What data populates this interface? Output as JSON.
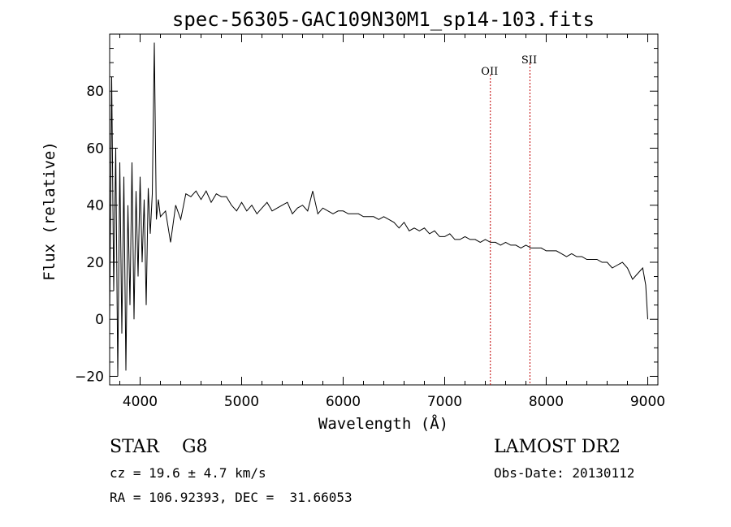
{
  "chart_data": {
    "type": "line",
    "title": "spec-56305-GAC109N30M1_sp14-103.fits",
    "xlabel": "Wavelength (Å)",
    "ylabel": "Flux (relative)",
    "xlim": [
      3700,
      9100
    ],
    "ylim": [
      -23,
      100
    ],
    "x_ticks": [
      4000,
      5000,
      6000,
      7000,
      8000,
      9000
    ],
    "y_ticks": [
      -20,
      0,
      20,
      40,
      60,
      80
    ],
    "grid": false,
    "series": [
      {
        "x": [
          3700,
          3720,
          3740,
          3760,
          3780,
          3800,
          3820,
          3840,
          3860,
          3880,
          3900,
          3920,
          3940,
          3960,
          3980,
          4000,
          4020,
          4040,
          4060,
          4080,
          4100,
          4120,
          4140,
          4160,
          4180,
          4200,
          4250,
          4300,
          4350,
          4400,
          4450,
          4500,
          4550,
          4600,
          4650,
          4700,
          4750,
          4800,
          4850,
          4900,
          4950,
          5000,
          5050,
          5100,
          5150,
          5200,
          5250,
          5300,
          5350,
          5400,
          5450,
          5500,
          5550,
          5600,
          5650,
          5700,
          5750,
          5800,
          5850,
          5900,
          5950,
          6000,
          6050,
          6100,
          6150,
          6200,
          6250,
          6300,
          6350,
          6400,
          6450,
          6500,
          6550,
          6600,
          6650,
          6700,
          6750,
          6800,
          6850,
          6900,
          6950,
          7000,
          7050,
          7100,
          7150,
          7200,
          7250,
          7300,
          7350,
          7400,
          7450,
          7500,
          7550,
          7600,
          7650,
          7700,
          7750,
          7800,
          7850,
          7900,
          7950,
          8000,
          8050,
          8100,
          8150,
          8200,
          8250,
          8300,
          8350,
          8400,
          8450,
          8500,
          8550,
          8600,
          8650,
          8700,
          8750,
          8800,
          8850,
          8900,
          8950,
          8980,
          9000
        ],
        "y": [
          0,
          85,
          10,
          60,
          -20,
          55,
          -5,
          50,
          -18,
          40,
          5,
          55,
          0,
          45,
          15,
          50,
          20,
          42,
          5,
          46,
          30,
          44,
          97,
          35,
          42,
          36,
          38,
          27,
          40,
          35,
          44,
          43,
          45,
          42,
          45,
          41,
          44,
          43,
          43,
          40,
          38,
          41,
          38,
          40,
          37,
          39,
          41,
          38,
          39,
          40,
          41,
          37,
          39,
          40,
          38,
          45,
          37,
          39,
          38,
          37,
          38,
          38,
          37,
          37,
          37,
          36,
          36,
          36,
          35,
          36,
          35,
          34,
          32,
          34,
          31,
          32,
          31,
          32,
          30,
          31,
          29,
          29,
          30,
          28,
          28,
          29,
          28,
          28,
          27,
          28,
          27,
          27,
          26,
          27,
          26,
          26,
          25,
          26,
          25,
          25,
          25,
          24,
          24,
          24,
          23,
          22,
          23,
          22,
          22,
          21,
          21,
          21,
          20,
          20,
          18,
          19,
          20,
          18,
          14,
          16,
          18,
          12,
          0
        ]
      }
    ],
    "lines": [
      {
        "label": "OII",
        "x": 7450
      },
      {
        "label": "SII",
        "x": 7840
      }
    ]
  },
  "info": {
    "classification": "STAR    G8",
    "cz": "cz = 19.6 ± 4.7 km/s",
    "radec": "RA = 106.92393, DEC =  31.66053",
    "survey": "LAMOST DR2",
    "obs_date": "Obs-Date: 20130112"
  }
}
